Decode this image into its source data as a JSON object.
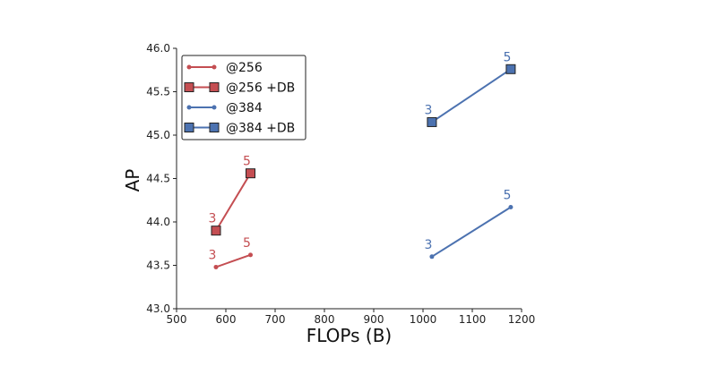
{
  "chart_data": {
    "type": "line",
    "xlabel": "FLOPs (B)",
    "ylabel": "AP",
    "xlim": [
      500,
      1200
    ],
    "ylim": [
      43.0,
      46.0
    ],
    "x_ticks": [
      "500",
      "600",
      "700",
      "800",
      "900",
      "1000",
      "1100",
      "1200"
    ],
    "y_ticks": [
      "43.0",
      "43.5",
      "44.0",
      "44.5",
      "45.0",
      "45.5",
      "46.0"
    ],
    "grid": false,
    "legend_position": "top-left",
    "series": [
      {
        "name": "@256",
        "color": "#c44e52",
        "marker": "dot",
        "points": [
          {
            "x": 580,
            "y": 43.48,
            "label": "3"
          },
          {
            "x": 650,
            "y": 43.62,
            "label": "5"
          }
        ]
      },
      {
        "name": "@256 +DB",
        "color": "#c44e52",
        "marker": "square",
        "points": [
          {
            "x": 580,
            "y": 43.9,
            "label": "3"
          },
          {
            "x": 650,
            "y": 44.56,
            "label": "5"
          }
        ]
      },
      {
        "name": "@384",
        "color": "#4c72b0",
        "marker": "dot",
        "points": [
          {
            "x": 1018,
            "y": 43.6,
            "label": "3"
          },
          {
            "x": 1178,
            "y": 44.17,
            "label": "5"
          }
        ]
      },
      {
        "name": "@384 +DB",
        "color": "#4c72b0",
        "marker": "square",
        "points": [
          {
            "x": 1018,
            "y": 45.15,
            "label": "3"
          },
          {
            "x": 1178,
            "y": 45.76,
            "label": "5"
          }
        ]
      }
    ]
  }
}
